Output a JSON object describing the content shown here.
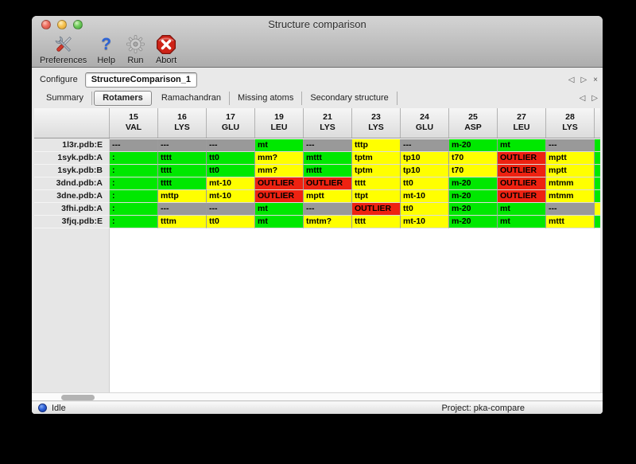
{
  "window": {
    "title": "Structure comparison"
  },
  "toolbar": {
    "items": [
      {
        "label": "Preferences",
        "icon": "tools-icon",
        "enabled": true
      },
      {
        "label": "Help",
        "icon": "help-icon",
        "enabled": true
      },
      {
        "label": "Run",
        "icon": "gear-icon",
        "enabled": false
      },
      {
        "label": "Abort",
        "icon": "abort-icon",
        "enabled": true
      }
    ]
  },
  "configure": {
    "label": "Configure",
    "value": "StructureComparison_1"
  },
  "tab_bar": {
    "tabs": [
      {
        "label": "Summary",
        "selected": false
      },
      {
        "label": "Rotamers",
        "selected": true
      },
      {
        "label": "Ramachandran",
        "selected": false
      },
      {
        "label": "Missing atoms",
        "selected": false
      },
      {
        "label": "Secondary structure",
        "selected": false
      }
    ]
  },
  "colors": {
    "green": "#00e800",
    "yellow": "#ffff00",
    "red": "#ee2211",
    "gray": "#999999"
  },
  "table": {
    "columns": [
      {
        "num": "15",
        "res": "VAL"
      },
      {
        "num": "16",
        "res": "LYS"
      },
      {
        "num": "17",
        "res": "GLU"
      },
      {
        "num": "19",
        "res": "LEU"
      },
      {
        "num": "21",
        "res": "LYS"
      },
      {
        "num": "23",
        "res": "LYS"
      },
      {
        "num": "24",
        "res": "GLU"
      },
      {
        "num": "25",
        "res": "ASP"
      },
      {
        "num": "27",
        "res": "LEU"
      },
      {
        "num": "28",
        "res": "LYS"
      }
    ],
    "rows": [
      {
        "label": "1l3r.pdb:E",
        "overflow": "green",
        "cells": [
          {
            "text": "---",
            "color": "gray"
          },
          {
            "text": "---",
            "color": "gray"
          },
          {
            "text": "---",
            "color": "gray"
          },
          {
            "text": "mt",
            "color": "green"
          },
          {
            "text": "---",
            "color": "gray"
          },
          {
            "text": "tttp",
            "color": "yellow"
          },
          {
            "text": "---",
            "color": "gray"
          },
          {
            "text": "m-20",
            "color": "green"
          },
          {
            "text": "mt",
            "color": "green"
          },
          {
            "text": "---",
            "color": "gray"
          }
        ]
      },
      {
        "label": "1syk.pdb:A",
        "overflow": "green",
        "cells": [
          {
            "text": ":",
            "color": "green"
          },
          {
            "text": "tttt",
            "color": "green"
          },
          {
            "text": "tt0",
            "color": "green"
          },
          {
            "text": "mm?",
            "color": "yellow"
          },
          {
            "text": "mttt",
            "color": "green"
          },
          {
            "text": "tptm",
            "color": "yellow"
          },
          {
            "text": "tp10",
            "color": "yellow"
          },
          {
            "text": "t70",
            "color": "yellow"
          },
          {
            "text": "OUTLIER",
            "color": "red"
          },
          {
            "text": "mptt",
            "color": "yellow"
          }
        ]
      },
      {
        "label": "1syk.pdb:B",
        "overflow": "green",
        "cells": [
          {
            "text": ":",
            "color": "green"
          },
          {
            "text": "tttt",
            "color": "green"
          },
          {
            "text": "tt0",
            "color": "green"
          },
          {
            "text": "mm?",
            "color": "yellow"
          },
          {
            "text": "mttt",
            "color": "green"
          },
          {
            "text": "tptm",
            "color": "yellow"
          },
          {
            "text": "tp10",
            "color": "yellow"
          },
          {
            "text": "t70",
            "color": "yellow"
          },
          {
            "text": "OUTLIER",
            "color": "red"
          },
          {
            "text": "mptt",
            "color": "yellow"
          }
        ]
      },
      {
        "label": "3dnd.pdb:A",
        "overflow": "green",
        "cells": [
          {
            "text": ":",
            "color": "green"
          },
          {
            "text": "tttt",
            "color": "green"
          },
          {
            "text": "mt-10",
            "color": "yellow"
          },
          {
            "text": "OUTLIER",
            "color": "red"
          },
          {
            "text": "OUTLIER",
            "color": "red"
          },
          {
            "text": "tttt",
            "color": "yellow"
          },
          {
            "text": "tt0",
            "color": "yellow"
          },
          {
            "text": "m-20",
            "color": "green"
          },
          {
            "text": "OUTLIER",
            "color": "red"
          },
          {
            "text": "mtmm",
            "color": "yellow"
          }
        ]
      },
      {
        "label": "3dne.pdb:A",
        "overflow": "green",
        "cells": [
          {
            "text": ":",
            "color": "green"
          },
          {
            "text": "mttp",
            "color": "yellow"
          },
          {
            "text": "mt-10",
            "color": "yellow"
          },
          {
            "text": "OUTLIER",
            "color": "red"
          },
          {
            "text": "mptt",
            "color": "yellow"
          },
          {
            "text": "ttpt",
            "color": "yellow"
          },
          {
            "text": "mt-10",
            "color": "yellow"
          },
          {
            "text": "m-20",
            "color": "green"
          },
          {
            "text": "OUTLIER",
            "color": "red"
          },
          {
            "text": "mtmm",
            "color": "yellow"
          }
        ]
      },
      {
        "label": "3fhi.pdb:A",
        "overflow": "yellow",
        "cells": [
          {
            "text": ":",
            "color": "green"
          },
          {
            "text": "---",
            "color": "gray"
          },
          {
            "text": "---",
            "color": "gray"
          },
          {
            "text": "mt",
            "color": "green"
          },
          {
            "text": "---",
            "color": "gray"
          },
          {
            "text": "OUTLIER",
            "color": "red"
          },
          {
            "text": "tt0",
            "color": "yellow"
          },
          {
            "text": "m-20",
            "color": "green"
          },
          {
            "text": "mt",
            "color": "green"
          },
          {
            "text": "---",
            "color": "gray"
          }
        ]
      },
      {
        "label": "3fjq.pdb:E",
        "overflow": "green",
        "cells": [
          {
            "text": ":",
            "color": "green"
          },
          {
            "text": "tttm",
            "color": "yellow"
          },
          {
            "text": "tt0",
            "color": "yellow"
          },
          {
            "text": "mt",
            "color": "green"
          },
          {
            "text": "tmtm?",
            "color": "yellow"
          },
          {
            "text": "tttt",
            "color": "yellow"
          },
          {
            "text": "mt-10",
            "color": "yellow"
          },
          {
            "text": "m-20",
            "color": "green"
          },
          {
            "text": "mt",
            "color": "green"
          },
          {
            "text": "mttt",
            "color": "yellow"
          }
        ]
      }
    ]
  },
  "status_bar": {
    "status": "Idle",
    "project_label": "Project: pka-compare"
  }
}
